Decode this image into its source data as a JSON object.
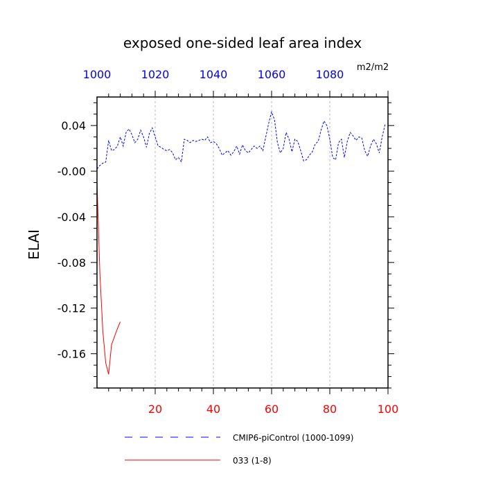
{
  "chart_data": {
    "type": "line",
    "title": "exposed one-sided leaf area index",
    "ylabel": "ELAI",
    "units": "m2/m2",
    "ylim": [
      -0.19,
      0.065
    ],
    "y_ticks": [
      "0.04",
      "-0.00",
      "-0.04",
      "-0.08",
      "-0.12",
      "-0.16"
    ],
    "y_tick_values": [
      0.04,
      0.0,
      -0.04,
      -0.08,
      -0.12,
      -0.16
    ],
    "bottom_axis": {
      "range": [
        0,
        100
      ],
      "ticks": [
        "20",
        "40",
        "60",
        "80",
        "100"
      ],
      "tick_values": [
        20,
        40,
        60,
        80,
        100
      ],
      "color": "#ff0000"
    },
    "top_axis": {
      "range": [
        1000,
        1100
      ],
      "ticks": [
        "1000",
        "1020",
        "1040",
        "1060",
        "1080"
      ],
      "tick_values": [
        1000,
        1020,
        1040,
        1060,
        1080
      ],
      "color": "#0000ff"
    },
    "grid": "vertical dashed at top-axis ticks",
    "legend_placement": "below",
    "series": [
      {
        "name": "CMIP6-piControl (1000-1099)",
        "axis": "top",
        "color": "#0000ff",
        "dash": "dashed",
        "x": [
          1000,
          1001,
          1002,
          1003,
          1004,
          1005,
          1006,
          1007,
          1008,
          1009,
          1010,
          1011,
          1012,
          1013,
          1014,
          1015,
          1016,
          1017,
          1018,
          1019,
          1020,
          1021,
          1022,
          1023,
          1024,
          1025,
          1026,
          1027,
          1028,
          1029,
          1030,
          1031,
          1032,
          1033,
          1034,
          1035,
          1036,
          1037,
          1038,
          1039,
          1040,
          1041,
          1042,
          1043,
          1044,
          1045,
          1046,
          1047,
          1048,
          1049,
          1050,
          1051,
          1052,
          1053,
          1054,
          1055,
          1056,
          1057,
          1058,
          1059,
          1060,
          1061,
          1062,
          1063,
          1064,
          1065,
          1066,
          1067,
          1068,
          1069,
          1070,
          1071,
          1072,
          1073,
          1074,
          1075,
          1076,
          1077,
          1078,
          1079,
          1080,
          1081,
          1082,
          1083,
          1084,
          1085,
          1086,
          1087,
          1088,
          1089,
          1090,
          1091,
          1092,
          1093,
          1094,
          1095,
          1096,
          1097,
          1098,
          1099
        ],
        "values": [
          0.002,
          0.005,
          0.007,
          0.008,
          0.027,
          0.018,
          0.019,
          0.022,
          0.03,
          0.022,
          0.034,
          0.037,
          0.032,
          0.025,
          0.028,
          0.036,
          0.03,
          0.021,
          0.033,
          0.038,
          0.03,
          0.022,
          0.021,
          0.019,
          0.018,
          0.019,
          0.016,
          0.01,
          0.012,
          0.008,
          0.028,
          0.027,
          0.025,
          0.027,
          0.026,
          0.027,
          0.028,
          0.027,
          0.03,
          0.025,
          0.026,
          0.024,
          0.02,
          0.014,
          0.016,
          0.018,
          0.014,
          0.017,
          0.022,
          0.015,
          0.023,
          0.018,
          0.016,
          0.019,
          0.022,
          0.02,
          0.022,
          0.018,
          0.03,
          0.042,
          0.052,
          0.045,
          0.025,
          0.016,
          0.02,
          0.034,
          0.028,
          0.017,
          0.028,
          0.026,
          0.018,
          0.009,
          0.01,
          0.014,
          0.017,
          0.024,
          0.026,
          0.036,
          0.044,
          0.04,
          0.028,
          0.012,
          0.01,
          0.025,
          0.028,
          0.012,
          0.026,
          0.034,
          0.031,
          0.027,
          0.03,
          0.029,
          0.018,
          0.013,
          0.022,
          0.028,
          0.024,
          0.016,
          0.03,
          0.041
        ]
      },
      {
        "name": "033 (1-8)",
        "axis": "bottom",
        "color": "#ff0000",
        "dash": "solid",
        "x": [
          0,
          1,
          2,
          3,
          4,
          5,
          6,
          7,
          8
        ],
        "values": [
          -0.01,
          -0.09,
          -0.14,
          -0.168,
          -0.178,
          -0.152,
          -0.145,
          -0.138,
          -0.132
        ]
      }
    ]
  }
}
